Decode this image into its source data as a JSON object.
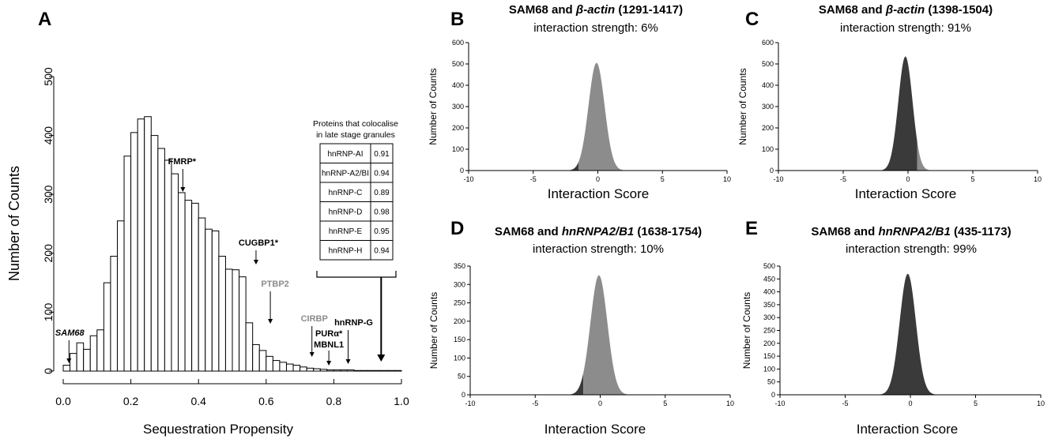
{
  "colors": {
    "bar_fill": "#ffffff",
    "bar_stroke": "#000000",
    "light": "#8c8c8c",
    "dark": "#3a3a3a",
    "gray_label": "#8c8c8c"
  },
  "chart_data": [
    {
      "panel": "A",
      "type": "bar",
      "xlabel": "Sequestration Propensity",
      "ylabel": "Number of Counts",
      "xlim": [
        0,
        1
      ],
      "ylim": [
        0,
        500
      ],
      "xticks": [
        "0.0",
        "0.2",
        "0.4",
        "0.6",
        "0.8",
        "1.0"
      ],
      "yticks": [
        "0",
        "100",
        "200",
        "300",
        "400",
        "500"
      ],
      "bin_width": 0.02,
      "bin_start": 0.0,
      "values": [
        10,
        30,
        48,
        37,
        60,
        70,
        150,
        195,
        255,
        365,
        405,
        428,
        432,
        400,
        378,
        358,
        335,
        303,
        290,
        285,
        260,
        241,
        238,
        195,
        173,
        172,
        160,
        82,
        45,
        35,
        25,
        18,
        15,
        12,
        10,
        7,
        5,
        4,
        3,
        2,
        2,
        2,
        2,
        1,
        1,
        1,
        1,
        1,
        1,
        1
      ],
      "annotations": [
        {
          "label": "SAM68",
          "x": 0.01,
          "style": "italic-bold",
          "color": "dark"
        },
        {
          "label": "FMRP*",
          "x": 0.37,
          "style": "bold",
          "color": "dark"
        },
        {
          "label": "CUGBP1*",
          "x": 0.57,
          "style": "bold",
          "color": "dark"
        },
        {
          "label": "PTBP2",
          "x": 0.61,
          "style": "bold",
          "color": "gray"
        },
        {
          "label": "CIRBP",
          "x": 0.74,
          "style": "bold",
          "color": "gray"
        },
        {
          "label": "PURα*",
          "x": 0.79,
          "style": "bold",
          "color": "dark"
        },
        {
          "label": "MBNL1",
          "x": 0.79,
          "style": "bold",
          "color": "dark"
        },
        {
          "label": "hnRNP-G",
          "x": 0.84,
          "style": "bold",
          "color": "dark"
        }
      ],
      "inset_table": {
        "title_line1": "Proteins that colocalise",
        "title_line2": "in late stage granules",
        "rows": [
          [
            "hnRNP-AI",
            "0.91"
          ],
          [
            "hnRNP-A2/BI",
            "0.94"
          ],
          [
            "hnRNP-C",
            "0.89"
          ],
          [
            "hnRNP-D",
            "0.98"
          ],
          [
            "hnRNP-E",
            "0.95"
          ],
          [
            "hnRNP-H",
            "0.94"
          ]
        ],
        "arrow_x": 0.94
      }
    },
    {
      "panel": "B",
      "type": "area",
      "title_plain": "SAM68 and ",
      "title_italic": "β-actin",
      "title_rest": " (1291-1417)",
      "subtitle": "interaction strength: 6%",
      "xlabel": "Interaction Score",
      "ylabel": "Number of Counts",
      "xlim": [
        -10,
        10
      ],
      "ylim": [
        0,
        600
      ],
      "xticks": [
        "-10",
        "-5",
        "0",
        "5",
        "10"
      ],
      "yticks": [
        "0",
        "100",
        "200",
        "300",
        "400",
        "500",
        "600"
      ],
      "series": [
        {
          "mean": -0.1,
          "sd": 0.62,
          "peak": 505,
          "dark_max": -1.5,
          "light_min": -1.5
        }
      ]
    },
    {
      "panel": "C",
      "type": "area",
      "title_plain": "SAM68 and ",
      "title_italic": "β-actin",
      "title_rest": " (1398-1504)",
      "subtitle": "interaction strength: 91%",
      "xlabel": "Interaction Score",
      "ylabel": "Number of Counts",
      "xlim": [
        -10,
        10
      ],
      "ylim": [
        0,
        600
      ],
      "xticks": [
        "-10",
        "-5",
        "0",
        "5",
        "10"
      ],
      "yticks": [
        "0",
        "100",
        "200",
        "300",
        "400",
        "500",
        "600"
      ],
      "series": [
        {
          "mean": -0.2,
          "sd": 0.55,
          "peak": 535,
          "dark_max": 0.7,
          "light_min": 0.7
        }
      ]
    },
    {
      "panel": "D",
      "type": "area",
      "title_plain": "SAM68 and ",
      "title_italic": "hnRNPA2/B1",
      "title_rest": " (1638-1754)",
      "subtitle": "interaction strength: 10%",
      "xlabel": "Interaction Score",
      "ylabel": "Number of Counts",
      "xlim": [
        -10,
        10
      ],
      "ylim": [
        0,
        350
      ],
      "xticks": [
        "-10",
        "-5",
        "0",
        "5",
        "10"
      ],
      "yticks": [
        "0",
        "50",
        "100",
        "150",
        "200",
        "250",
        "300",
        "350"
      ],
      "series": [
        {
          "mean": -0.1,
          "sd": 0.65,
          "peak": 325,
          "dark_max": -1.3,
          "light_min": -1.3
        }
      ]
    },
    {
      "panel": "E",
      "type": "area",
      "title_plain": "SAM68 and ",
      "title_italic": "hnRNPA2/B1",
      "title_rest": " (435-1173)",
      "subtitle": "interaction strength: 99%",
      "xlabel": "Interaction Score",
      "ylabel": "Number of Counts",
      "xlim": [
        -10,
        10
      ],
      "ylim": [
        0,
        500
      ],
      "xticks": [
        "-10",
        "-5",
        "0",
        "5",
        "10"
      ],
      "yticks": [
        "0",
        "50",
        "100",
        "150",
        "200",
        "250",
        "300",
        "350",
        "400",
        "450",
        "500"
      ],
      "series": [
        {
          "mean": -0.2,
          "sd": 0.62,
          "peak": 470,
          "dark_max": 10,
          "light_min": 10
        }
      ]
    }
  ]
}
